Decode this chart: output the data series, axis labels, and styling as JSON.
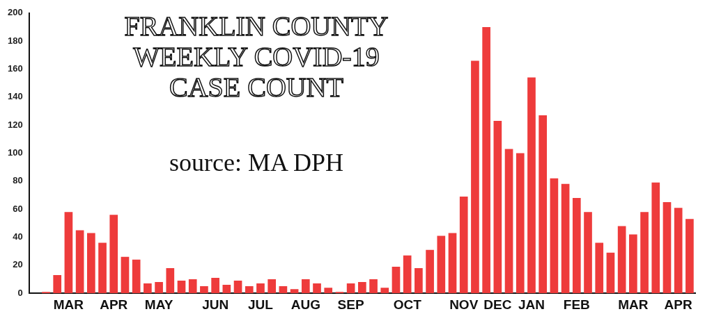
{
  "chart_data": {
    "type": "bar",
    "title": "FRANKLIN COUNTY\nWEEKLY COVID-19\nCASE COUNT",
    "annotations": [
      "source: MA DPH"
    ],
    "categories": [
      null,
      null,
      null,
      "MAR",
      null,
      null,
      null,
      "APR",
      null,
      null,
      null,
      "MAY",
      null,
      null,
      null,
      null,
      "JUN",
      null,
      null,
      null,
      "JUL",
      null,
      null,
      null,
      "AUG",
      null,
      null,
      null,
      "SEP",
      null,
      null,
      null,
      null,
      "OCT",
      null,
      null,
      null,
      null,
      "NOV",
      null,
      null,
      "DEC",
      null,
      null,
      "JAN",
      null,
      null,
      null,
      "FEB",
      null,
      null,
      null,
      null,
      "MAR",
      null,
      null,
      null,
      "APR",
      null
    ],
    "values": [
      0,
      1,
      13,
      58,
      45,
      43,
      36,
      56,
      26,
      24,
      7,
      8,
      18,
      9,
      10,
      5,
      11,
      6,
      9,
      5,
      7,
      10,
      5,
      3,
      10,
      7,
      4,
      1,
      7,
      8,
      10,
      4,
      19,
      27,
      18,
      31,
      41,
      43,
      69,
      166,
      190,
      123,
      103,
      100,
      154,
      127,
      82,
      78,
      68,
      58,
      36,
      29,
      48,
      42,
      58,
      79,
      65,
      61,
      53
    ],
    "color": "#ee3b3b",
    "ylim": [
      0,
      200
    ],
    "yticks": [
      0,
      20,
      40,
      60,
      80,
      100,
      120,
      140,
      160,
      180,
      200
    ],
    "grid": false,
    "legend": false
  }
}
